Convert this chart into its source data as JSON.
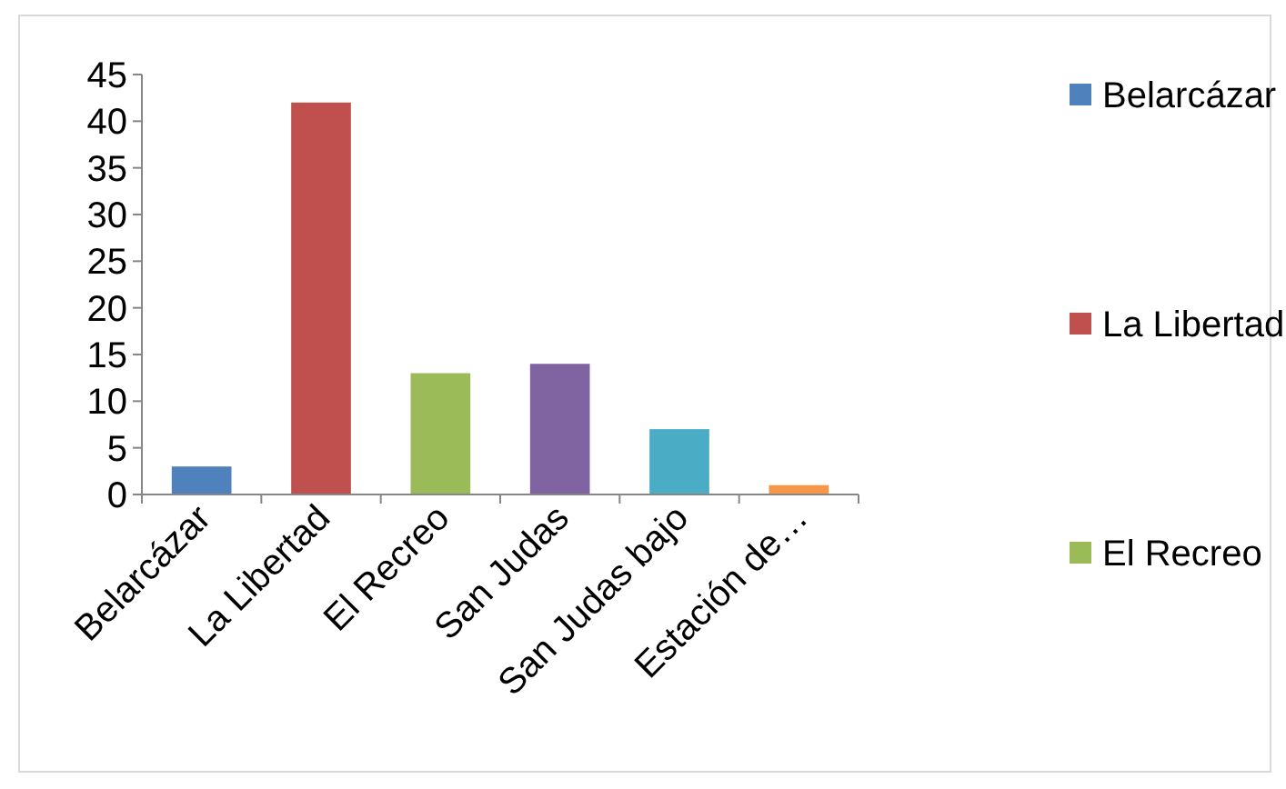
{
  "chart_data": {
    "type": "bar",
    "categories": [
      "Belarcázar",
      "La Libertad",
      "El Recreo",
      "San Judas",
      "San Judas bajo",
      "Estación de…"
    ],
    "stacked": true,
    "series": [
      {
        "name": "Belarcázar",
        "color": "#4f81bd",
        "values": [
          3,
          null,
          null,
          null,
          null,
          null
        ]
      },
      {
        "name": "La Libertad",
        "color": "#c0504d",
        "values": [
          null,
          42,
          null,
          null,
          null,
          null
        ]
      },
      {
        "name": "El Recreo",
        "color": "#9bbb59",
        "values": [
          null,
          null,
          13,
          null,
          null,
          null
        ]
      },
      {
        "color": "#8064a2",
        "values": [
          null,
          null,
          null,
          14,
          null,
          null
        ]
      },
      {
        "color": "#4bacc6",
        "values": [
          null,
          null,
          null,
          null,
          7,
          null
        ]
      },
      {
        "color": "#f79646",
        "values": [
          null,
          null,
          null,
          null,
          null,
          1
        ]
      }
    ],
    "ylim": [
      0,
      45
    ],
    "yticks": [
      0,
      5,
      10,
      15,
      20,
      25,
      30,
      35,
      40,
      45
    ],
    "legend": "right"
  }
}
